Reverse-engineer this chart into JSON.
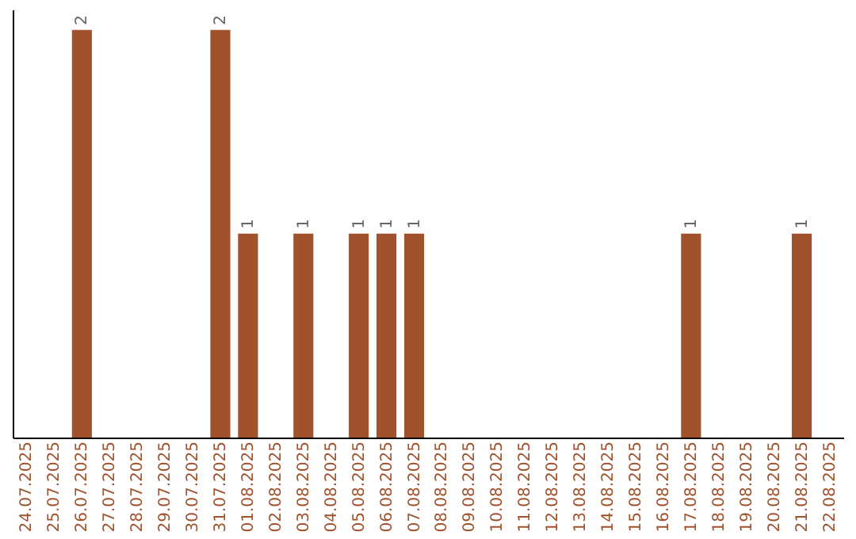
{
  "chart_data": {
    "type": "bar",
    "categories": [
      "24.07.2025",
      "25.07.2025",
      "26.07.2025",
      "27.07.2025",
      "28.07.2025",
      "29.07.2025",
      "30.07.2025",
      "31.07.2025",
      "01.08.2025",
      "02.08.2025",
      "03.08.2025",
      "04.08.2025",
      "05.08.2025",
      "06.08.2025",
      "07.08.2025",
      "08.08.2025",
      "09.08.2025",
      "10.08.2025",
      "11.08.2025",
      "12.08.2025",
      "13.08.2025",
      "14.08.2025",
      "15.08.2025",
      "16.08.2025",
      "17.08.2025",
      "18.08.2025",
      "19.08.2025",
      "20.08.2025",
      "21.08.2025",
      "22.08.2025"
    ],
    "values": [
      0,
      0,
      2,
      0,
      0,
      0,
      0,
      2,
      1,
      0,
      1,
      0,
      1,
      1,
      1,
      0,
      0,
      0,
      0,
      0,
      0,
      0,
      0,
      0,
      1,
      0,
      0,
      0,
      1,
      0
    ],
    "value_labels": [
      null,
      null,
      "2",
      null,
      null,
      null,
      null,
      "2",
      "1",
      null,
      "1",
      null,
      "1",
      "1",
      "1",
      null,
      null,
      null,
      null,
      null,
      null,
      null,
      null,
      null,
      "1",
      null,
      null,
      null,
      "1",
      null
    ],
    "color": "#a0522d",
    "ylim": [
      0,
      2.1
    ],
    "tick_labels": "x",
    "grid": false
  }
}
